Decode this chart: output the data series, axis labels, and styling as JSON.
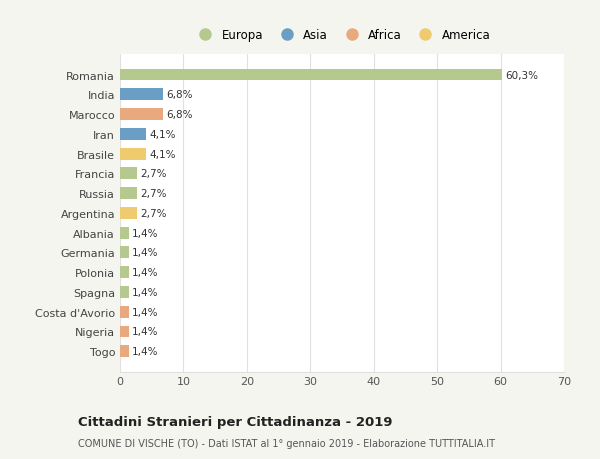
{
  "categories": [
    "Romania",
    "India",
    "Marocco",
    "Iran",
    "Brasile",
    "Francia",
    "Russia",
    "Argentina",
    "Albania",
    "Germania",
    "Polonia",
    "Spagna",
    "Costa d'Avorio",
    "Nigeria",
    "Togo"
  ],
  "values": [
    60.3,
    6.8,
    6.8,
    4.1,
    4.1,
    2.7,
    2.7,
    2.7,
    1.4,
    1.4,
    1.4,
    1.4,
    1.4,
    1.4,
    1.4
  ],
  "labels": [
    "60,3%",
    "6,8%",
    "6,8%",
    "4,1%",
    "4,1%",
    "2,7%",
    "2,7%",
    "2,7%",
    "1,4%",
    "1,4%",
    "1,4%",
    "1,4%",
    "1,4%",
    "1,4%",
    "1,4%"
  ],
  "colors": [
    "#b5c98e",
    "#6a9ec5",
    "#e8a97e",
    "#6a9ec5",
    "#f0ca6e",
    "#b5c98e",
    "#b5c98e",
    "#f0ca6e",
    "#b5c98e",
    "#b5c98e",
    "#b5c98e",
    "#b5c98e",
    "#e8a97e",
    "#e8a97e",
    "#e8a97e"
  ],
  "continent_colors": {
    "Europa": "#b5c98e",
    "Asia": "#6a9ec5",
    "Africa": "#e8a97e",
    "America": "#f0ca6e"
  },
  "xlim": [
    0,
    70
  ],
  "xticks": [
    0,
    10,
    20,
    30,
    40,
    50,
    60,
    70
  ],
  "title": "Cittadini Stranieri per Cittadinanza - 2019",
  "subtitle": "COMUNE DI VISCHE (TO) - Dati ISTAT al 1° gennaio 2019 - Elaborazione TUTTITALIA.IT",
  "background_color": "#f5f5f0",
  "bar_background": "#ffffff",
  "grid_color": "#e0e0e0",
  "bar_height": 0.6
}
